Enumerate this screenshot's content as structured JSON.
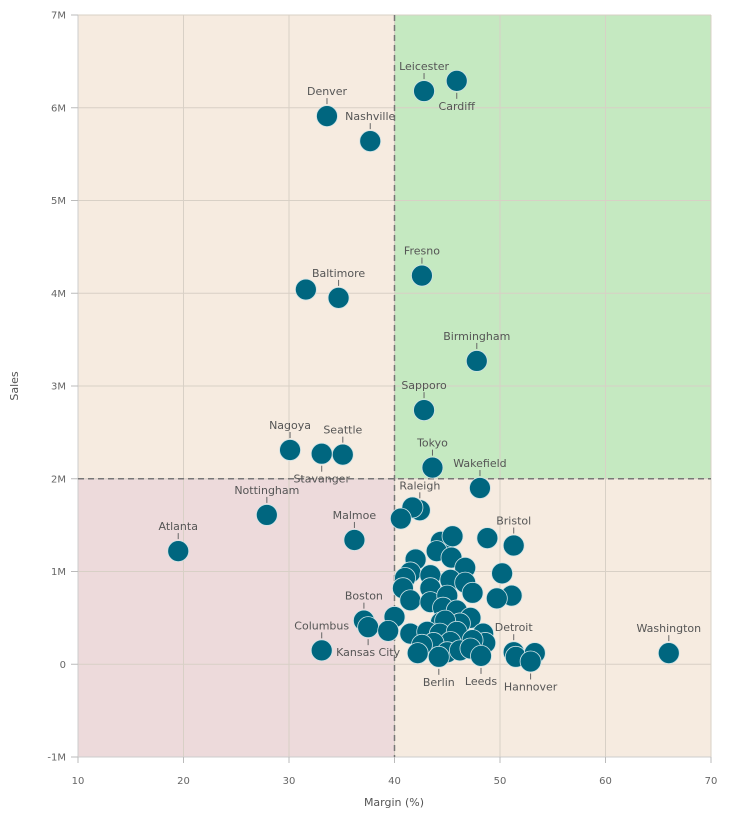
{
  "chart_data": {
    "type": "scatter",
    "title": "",
    "xlabel": "Margin (%)",
    "ylabel": "Sales",
    "xlim": [
      10,
      70
    ],
    "ylim": [
      -1000000,
      7000000
    ],
    "xticks": [
      "10",
      "20",
      "30",
      "40",
      "50",
      "60",
      "70"
    ],
    "yticks": [
      "-1M",
      "0",
      "1M",
      "2M",
      "3M",
      "4M",
      "5M",
      "6M",
      "7M"
    ],
    "grid": true,
    "reference_lines": {
      "x": 40,
      "y": 2000000
    },
    "quadrant_colors": {
      "top_left": "#f6ebe0",
      "top_right": "#c5e9c1",
      "bottom_left": "#eddadb",
      "bottom_right": "#f6ebe0"
    },
    "point_color": "#00667f",
    "points": [
      {
        "label": "Leicester",
        "x": 42.8,
        "y": 6180000
      },
      {
        "label": "Cardiff",
        "x": 45.9,
        "y": 6290000
      },
      {
        "label": "Denver",
        "x": 33.6,
        "y": 5910000
      },
      {
        "label": "Nashville",
        "x": 37.7,
        "y": 5640000
      },
      {
        "label": "Fresno",
        "x": 42.6,
        "y": 4190000
      },
      {
        "label": "Baltimore",
        "x": 34.7,
        "y": 3950000
      },
      {
        "label": "",
        "x": 31.6,
        "y": 4040000
      },
      {
        "label": "Birmingham",
        "x": 47.8,
        "y": 3270000
      },
      {
        "label": "Sapporo",
        "x": 42.8,
        "y": 2740000
      },
      {
        "label": "Nagoya",
        "x": 30.1,
        "y": 2310000
      },
      {
        "label": "Seattle",
        "x": 35.1,
        "y": 2260000
      },
      {
        "label": "Stavanger",
        "x": 33.1,
        "y": 2270000
      },
      {
        "label": "Tokyo",
        "x": 43.6,
        "y": 2120000
      },
      {
        "label": "Wakefield",
        "x": 48.1,
        "y": 1900000
      },
      {
        "label": "Raleigh",
        "x": 42.4,
        "y": 1660000
      },
      {
        "label": "",
        "x": 41.7,
        "y": 1690000
      },
      {
        "label": "",
        "x": 40.6,
        "y": 1570000
      },
      {
        "label": "Nottingham",
        "x": 27.9,
        "y": 1610000
      },
      {
        "label": "Atlanta",
        "x": 19.5,
        "y": 1220000
      },
      {
        "label": "Malmoe",
        "x": 36.2,
        "y": 1340000
      },
      {
        "label": "Bristol",
        "x": 51.3,
        "y": 1280000
      },
      {
        "label": "",
        "x": 44.4,
        "y": 1320000
      },
      {
        "label": "",
        "x": 45.5,
        "y": 1380000
      },
      {
        "label": "",
        "x": 48.8,
        "y": 1360000
      },
      {
        "label": "",
        "x": 44.0,
        "y": 1220000
      },
      {
        "label": "",
        "x": 45.4,
        "y": 1150000
      },
      {
        "label": "",
        "x": 42.0,
        "y": 1130000
      },
      {
        "label": "",
        "x": 46.7,
        "y": 1040000
      },
      {
        "label": "",
        "x": 50.2,
        "y": 980000
      },
      {
        "label": "",
        "x": 41.5,
        "y": 990000
      },
      {
        "label": "",
        "x": 41.0,
        "y": 930000
      },
      {
        "label": "",
        "x": 43.4,
        "y": 960000
      },
      {
        "label": "",
        "x": 45.3,
        "y": 910000
      },
      {
        "label": "",
        "x": 46.7,
        "y": 880000
      },
      {
        "label": "",
        "x": 47.4,
        "y": 770000
      },
      {
        "label": "",
        "x": 51.1,
        "y": 740000
      },
      {
        "label": "",
        "x": 49.7,
        "y": 710000
      },
      {
        "label": "",
        "x": 40.8,
        "y": 820000
      },
      {
        "label": "",
        "x": 43.4,
        "y": 820000
      },
      {
        "label": "",
        "x": 41.5,
        "y": 690000
      },
      {
        "label": "",
        "x": 43.4,
        "y": 670000
      },
      {
        "label": "",
        "x": 45.0,
        "y": 740000
      },
      {
        "label": "",
        "x": 44.6,
        "y": 610000
      },
      {
        "label": "",
        "x": 45.9,
        "y": 580000
      },
      {
        "label": "",
        "x": 47.2,
        "y": 500000
      },
      {
        "label": "",
        "x": 46.2,
        "y": 440000
      },
      {
        "label": "Boston",
        "x": 37.1,
        "y": 470000
      },
      {
        "label": "Kansas City",
        "x": 37.5,
        "y": 400000
      },
      {
        "label": "Columbus",
        "x": 33.1,
        "y": 150000
      },
      {
        "label": "",
        "x": 40.0,
        "y": 510000
      },
      {
        "label": "",
        "x": 39.4,
        "y": 360000
      },
      {
        "label": "",
        "x": 41.5,
        "y": 330000
      },
      {
        "label": "",
        "x": 44.4,
        "y": 450000
      },
      {
        "label": "",
        "x": 44.8,
        "y": 470000
      },
      {
        "label": "",
        "x": 43.1,
        "y": 350000
      },
      {
        "label": "",
        "x": 44.3,
        "y": 330000
      },
      {
        "label": "",
        "x": 45.9,
        "y": 350000
      },
      {
        "label": "",
        "x": 48.4,
        "y": 330000
      },
      {
        "label": "",
        "x": 48.6,
        "y": 230000
      },
      {
        "label": "",
        "x": 47.4,
        "y": 260000
      },
      {
        "label": "",
        "x": 45.3,
        "y": 240000
      },
      {
        "label": "",
        "x": 43.7,
        "y": 230000
      },
      {
        "label": "",
        "x": 42.6,
        "y": 210000
      },
      {
        "label": "",
        "x": 42.2,
        "y": 120000
      },
      {
        "label": "",
        "x": 45.0,
        "y": 130000
      },
      {
        "label": "",
        "x": 46.2,
        "y": 150000
      },
      {
        "label": "",
        "x": 47.2,
        "y": 170000
      },
      {
        "label": "Berlin",
        "x": 44.2,
        "y": 80000
      },
      {
        "label": "Leeds",
        "x": 48.2,
        "y": 90000
      },
      {
        "label": "Detroit",
        "x": 51.3,
        "y": 130000
      },
      {
        "label": "",
        "x": 51.5,
        "y": 80000
      },
      {
        "label": "",
        "x": 53.3,
        "y": 120000
      },
      {
        "label": "Hannover",
        "x": 52.9,
        "y": 30000
      },
      {
        "label": "Washington",
        "x": 66.0,
        "y": 120000
      }
    ]
  }
}
